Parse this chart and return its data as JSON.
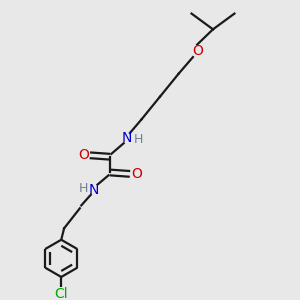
{
  "bg_color": "#e8e8e8",
  "bond_color": "#1a1a1a",
  "N_color": "#0000cd",
  "O_color": "#cc0000",
  "Cl_color": "#00aa00",
  "H_color": "#708090",
  "line_width": 1.6,
  "figsize": [
    3.0,
    3.0
  ],
  "dpi": 100,
  "xlim": [
    0,
    10
  ],
  "ylim": [
    0,
    10
  ]
}
